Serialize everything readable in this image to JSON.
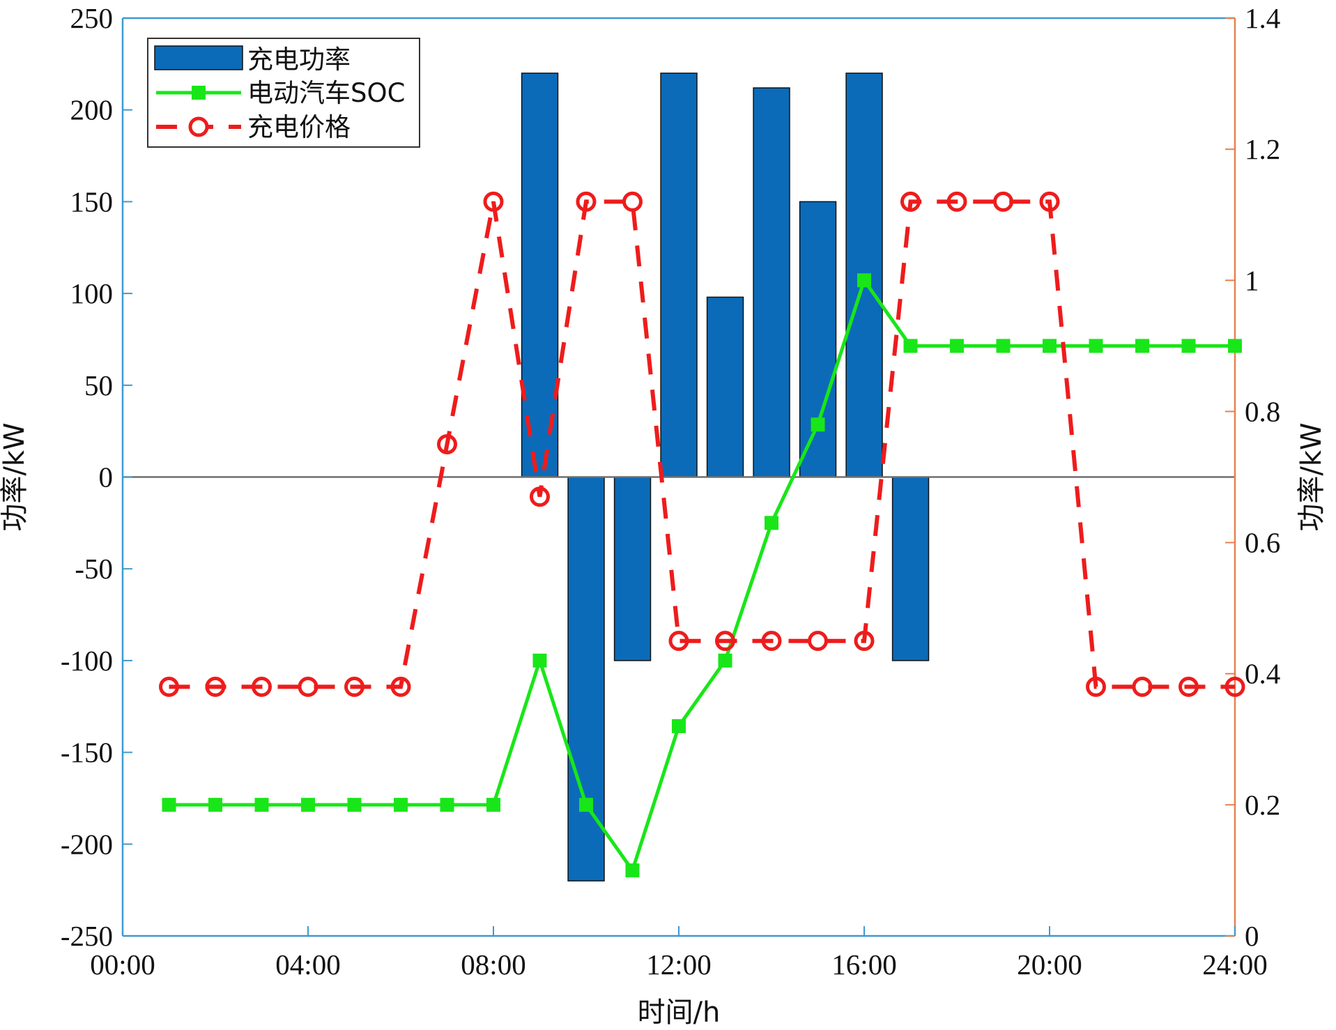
{
  "chart_data": {
    "type": "bar",
    "title": "",
    "xlabel": "时间/h",
    "ylabel_left": "功率/kW",
    "ylabel_right": "功率/kW",
    "x_tick_labels": [
      "00:00",
      "04:00",
      "08:00",
      "12:00",
      "16:00",
      "20:00",
      "24:00"
    ],
    "xlim": [
      0,
      24
    ],
    "ylim_left": [
      -250,
      250
    ],
    "ylim_right": [
      0,
      1.4
    ],
    "left_ticks": [
      -250,
      -200,
      -150,
      -100,
      -50,
      0,
      50,
      100,
      150,
      200,
      250
    ],
    "right_ticks": [
      0,
      0.2,
      0.4,
      0.6,
      0.8,
      1,
      1.2,
      1.4
    ],
    "right_tick_labels": [
      "0",
      "0.2",
      "0.4",
      "0.6",
      "0.8",
      "1",
      "1.2",
      "1.4"
    ],
    "x": [
      1,
      2,
      3,
      4,
      5,
      6,
      7,
      8,
      9,
      10,
      11,
      12,
      13,
      14,
      15,
      16,
      17,
      18,
      19,
      20,
      21,
      22,
      23,
      24
    ],
    "legend_position": "top-left",
    "grid": false,
    "series": [
      {
        "name": "充电功率",
        "kind": "bar",
        "axis": "left",
        "color": "#0B6BB8",
        "values": [
          0,
          0,
          0,
          0,
          0,
          0,
          0,
          0,
          220,
          -220,
          -100,
          220,
          98,
          212,
          150,
          220,
          -100,
          0,
          0,
          0,
          0,
          0,
          0,
          0
        ]
      },
      {
        "name": "电动汽车SOC",
        "kind": "line",
        "axis": "right",
        "color": "#19E619",
        "marker": "square",
        "values": [
          0.2,
          0.2,
          0.2,
          0.2,
          0.2,
          0.2,
          0.2,
          0.2,
          0.42,
          0.2,
          0.1,
          0.32,
          0.42,
          0.63,
          0.78,
          1.0,
          0.9,
          0.9,
          0.9,
          0.9,
          0.9,
          0.9,
          0.9,
          0.9
        ]
      },
      {
        "name": "充电价格",
        "kind": "line",
        "axis": "right",
        "color": "#EE1C1C",
        "marker": "circle",
        "dashed": true,
        "values": [
          0.38,
          0.38,
          0.38,
          0.38,
          0.38,
          0.38,
          0.75,
          1.12,
          0.67,
          1.12,
          1.12,
          0.45,
          0.45,
          0.45,
          0.45,
          0.45,
          1.12,
          1.12,
          1.12,
          1.12,
          0.38,
          0.38,
          0.38,
          0.38
        ]
      }
    ],
    "colors": {
      "left_axis": "#3D9AD1",
      "right_axis": "#E8804D",
      "zero_line": "#6E6E6E",
      "text": "#111111"
    }
  }
}
